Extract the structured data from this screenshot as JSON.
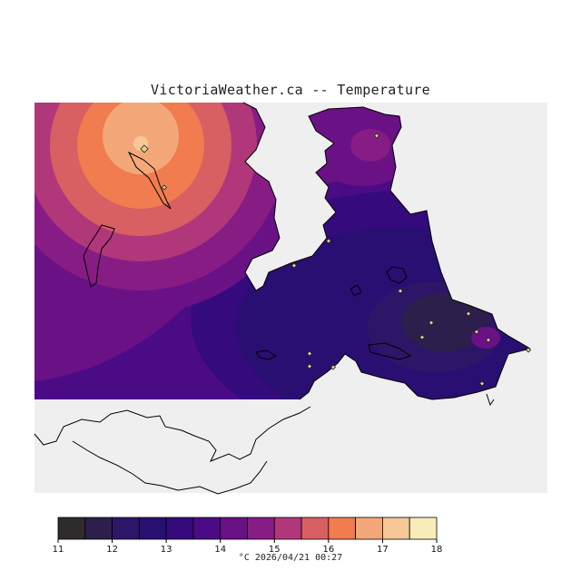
{
  "title": "VictoriaWeather.ca -- Temperature",
  "unit": "°C",
  "timestamp": "2026/04/21 00:27",
  "footer": "°C  2026/04/21 00:27",
  "colors": {
    "background_unfilled": "#efefef",
    "land_outline": "#000000",
    "station_marker": "#d8d890"
  },
  "colorbar": {
    "min": 11,
    "max": 18,
    "step": 0.5,
    "tick_labels": [
      "11",
      "12",
      "13",
      "14",
      "15",
      "16",
      "17",
      "18"
    ],
    "bins": [
      "#2e2b2d",
      "#2c1f4b",
      "#2d1667",
      "#290f72",
      "#350a7d",
      "#4b0b85",
      "#6a1186",
      "#871c84",
      "#b0387a",
      "#d85f62",
      "#f07c4f",
      "#f4a87a",
      "#f6c896",
      "#f8edb8"
    ]
  },
  "station_count": 16
}
